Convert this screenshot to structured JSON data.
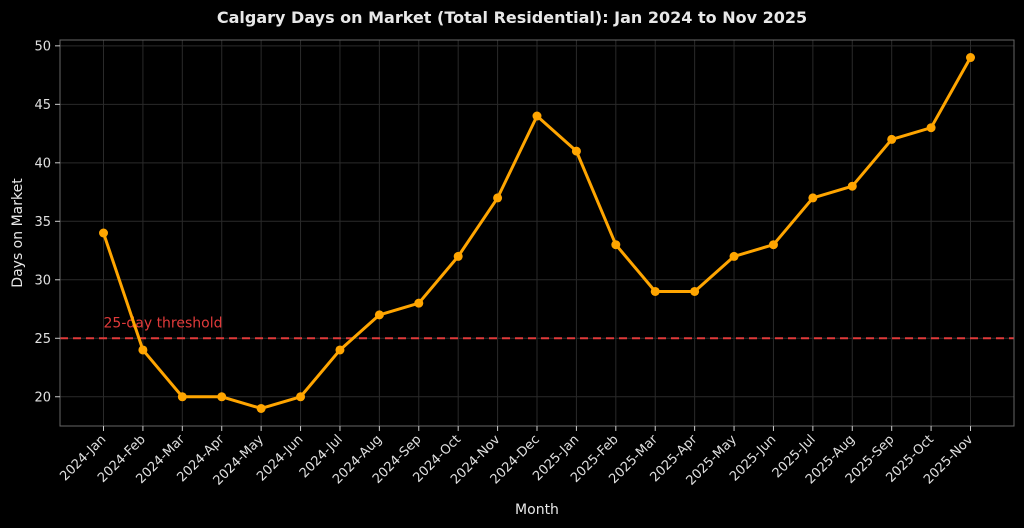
{
  "colors": {
    "background": "#000000",
    "series": "#ffa500",
    "threshold": "#e03a3a",
    "grid": "#2a2a2a",
    "axis": "#666666",
    "text": "#e8e8e8"
  },
  "chart_data": {
    "type": "line",
    "title": "Calgary Days on Market (Total Residential): Jan 2024 to Nov 2025",
    "xlabel": "Month",
    "ylabel": "Days on Market",
    "categories": [
      "2024-Jan",
      "2024-Feb",
      "2024-Mar",
      "2024-Apr",
      "2024-May",
      "2024-Jun",
      "2024-Jul",
      "2024-Aug",
      "2024-Sep",
      "2024-Oct",
      "2024-Nov",
      "2024-Dec",
      "2025-Jan",
      "2025-Feb",
      "2025-Mar",
      "2025-Apr",
      "2025-May",
      "2025-Jun",
      "2025-Jul",
      "2025-Aug",
      "2025-Sep",
      "2025-Oct",
      "2025-Nov"
    ],
    "series": [
      {
        "values": [
          34,
          24,
          20,
          20,
          19,
          20,
          24,
          27,
          28,
          32,
          37,
          44,
          41,
          33,
          29,
          29,
          32,
          33,
          37,
          38,
          42,
          43,
          49
        ]
      }
    ],
    "threshold": {
      "value": 25,
      "label": "25-day threshold"
    },
    "ylim": [
      17.5,
      50.5
    ],
    "yticks": [
      20,
      25,
      30,
      35,
      40,
      45,
      50
    ],
    "grid": true,
    "legend": "none"
  }
}
